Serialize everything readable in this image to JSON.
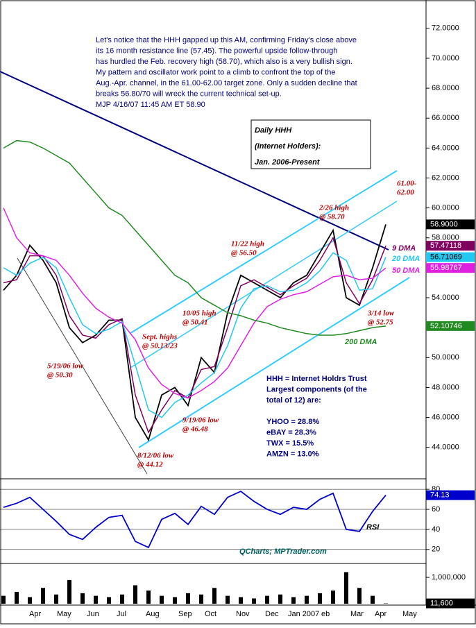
{
  "chart_data": [
    {
      "type": "line",
      "title": [
        "Daily HHH",
        "(Internet Holders):",
        "Jan. 2006-Present"
      ],
      "commentary": [
        "Let's notice that the HHH gapped up this AM, confirming Friday's close above",
        "its 16 month resistance line (57.45). The powerful upside follow-through",
        "has hurdled the Feb. recovery high (58.70), which also is a very bullish sign.",
        "My pattern and oscillator work point to a climb to confront the top of the",
        "Aug.-Apr. channel, in the 61.00-62.00 target zone. Only a sudden decline that",
        "breaks 56.80/70 will wreck the current technical set-up.",
        "MJP  4/16/07  11:45 AM ET  58.90"
      ],
      "info": [
        "HHH = Internet Holdrs Trust",
        "Largest components (of the",
        "total of 12) are:",
        "",
        "YHOO = 28.8%",
        "eBAY = 28.3%",
        "TWX = 15.5%",
        "AMZN = 13.0%"
      ],
      "annotations": [
        [
          "11/22 high",
          "@ 56.50"
        ],
        [
          "2/26 high",
          "@ 58.70"
        ],
        [
          "10/05 high",
          "@ 50.41"
        ],
        [
          "Sept. highs",
          "@ 50.13/23"
        ],
        [
          "5/19/06 low",
          "@ 50.30"
        ],
        [
          "9/19/06 low",
          "@ 46.48"
        ],
        [
          "8/12/06 low",
          "@ 44.12"
        ],
        [
          "3/14 low",
          "@ 52.75"
        ],
        [
          "61.00-",
          "62.00"
        ]
      ],
      "month_labels": [
        "Apr",
        "May",
        "Jun",
        "Jul",
        "Aug",
        "Sep",
        "Oct",
        "Nov",
        "Dec",
        "Jan 2007",
        "eb",
        "Mar",
        "Apr",
        "May"
      ],
      "ylim": [
        41.9,
        73.8
      ],
      "yticks": [
        {
          "value": 44,
          "label": "44.0000"
        },
        {
          "value": 46,
          "label": "46.0000"
        },
        {
          "value": 48,
          "label": "48.0000"
        },
        {
          "value": 50,
          "label": "50.0000"
        },
        {
          "value": 52,
          "label": "52.0000"
        },
        {
          "value": 54,
          "label": "54.0000"
        },
        {
          "value": 56,
          "label": "56.0000"
        },
        {
          "value": 58,
          "label": "58.0000"
        },
        {
          "value": 60,
          "label": "60.0000"
        },
        {
          "value": 62,
          "label": "62.0000"
        },
        {
          "value": 64,
          "label": "64.0000"
        },
        {
          "value": 66,
          "label": "66.0000"
        },
        {
          "value": 68,
          "label": "68.0000"
        },
        {
          "value": 70,
          "label": "70.0000"
        },
        {
          "value": 72,
          "label": "72.0000"
        }
      ],
      "series": [
        {
          "color": "#000000",
          "values": [
            54.5,
            55.5,
            57.5,
            56.5,
            55,
            52,
            51,
            51.5,
            52.5,
            52.5,
            46,
            44.5,
            47.5,
            48,
            46.8,
            50,
            49,
            53,
            55.5,
            55,
            54.5,
            54,
            55,
            55.5,
            57,
            58.5,
            54,
            53.5,
            56,
            58.9
          ],
          "last_label": "58.9000"
        },
        {
          "name": "9 DMA",
          "color": "#800060",
          "values": [
            55,
            55.2,
            56.8,
            56.8,
            55.5,
            52.8,
            51.5,
            51.3,
            52.2,
            52.6,
            47.5,
            45,
            46.5,
            47.8,
            47.3,
            49.2,
            49.4,
            52,
            54.8,
            55.2,
            54.7,
            54.2,
            54.8,
            55.3,
            56.5,
            58,
            55,
            53.6,
            55.2,
            57.47118
          ],
          "last_label": "57.47118"
        },
        {
          "name": "20 DMA",
          "color": "#22c8f0",
          "values": [
            56,
            55.5,
            56.3,
            56.7,
            56,
            54,
            52.2,
            51.6,
            51.9,
            52.4,
            49.5,
            46.5,
            46,
            47,
            47.5,
            48.3,
            49,
            50.8,
            53.3,
            54.6,
            54.8,
            54.4,
            54.5,
            55,
            55.8,
            57,
            56.5,
            54.5,
            54.6,
            56.71069
          ],
          "last_label": "56.71069"
        },
        {
          "name": "50 DMA",
          "color": "#e020e0",
          "values": [
            60,
            58,
            57,
            56.8,
            56.5,
            55.5,
            54.3,
            53.3,
            52.7,
            52.3,
            51.2,
            49.3,
            48.2,
            47.6,
            47.3,
            47.8,
            48.4,
            49.3,
            50.8,
            52.3,
            53.4,
            53.9,
            54.2,
            54.4,
            54.9,
            55.4,
            55.5,
            55.2,
            55.3,
            55.98767
          ],
          "last_label": "55.98767"
        },
        {
          "name": "200 DMA",
          "color": "#208a20",
          "values": [
            64,
            64.5,
            64.4,
            64,
            63.5,
            63,
            62,
            61,
            60,
            59.5,
            58.5,
            57.5,
            56.5,
            55.5,
            55,
            54,
            53.5,
            53,
            52.8,
            52.5,
            52.3,
            52,
            51.8,
            51.6,
            51.5,
            51.5,
            51.6,
            51.8,
            52,
            52.10746
          ],
          "last_label": "52.10746"
        }
      ]
    },
    {
      "type": "line",
      "ylim": [
        6,
        87
      ],
      "yticks": [
        20,
        40,
        60,
        80
      ],
      "label": "RSI",
      "credit": "QCharts; MPTrader.com",
      "series": [
        {
          "color": "#0000cc",
          "values": [
            62,
            66,
            72,
            60,
            48,
            35,
            30,
            42,
            52,
            54,
            28,
            22,
            50,
            56,
            45,
            63,
            55,
            72,
            78,
            68,
            60,
            55,
            62,
            60,
            70,
            76,
            40,
            38,
            58,
            74.13
          ],
          "last_label": "74.13"
        }
      ]
    },
    {
      "type": "bar",
      "ylim": [
        0,
        1450000
      ],
      "yticks": [
        {
          "value": 1000000,
          "label": "1,000,000"
        }
      ],
      "series": [
        {
          "color": "#000000",
          "values": [
            300000,
            450000,
            250000,
            600000,
            350000,
            900000,
            400000,
            300000,
            250000,
            350000,
            700000,
            500000,
            300000,
            250000,
            400000,
            350000,
            600000,
            300000,
            250000,
            200000,
            300000,
            350000,
            250000,
            300000,
            400000,
            500000,
            1200000,
            600000,
            300000,
            11600
          ],
          "last_label": "11,600"
        }
      ]
    }
  ]
}
